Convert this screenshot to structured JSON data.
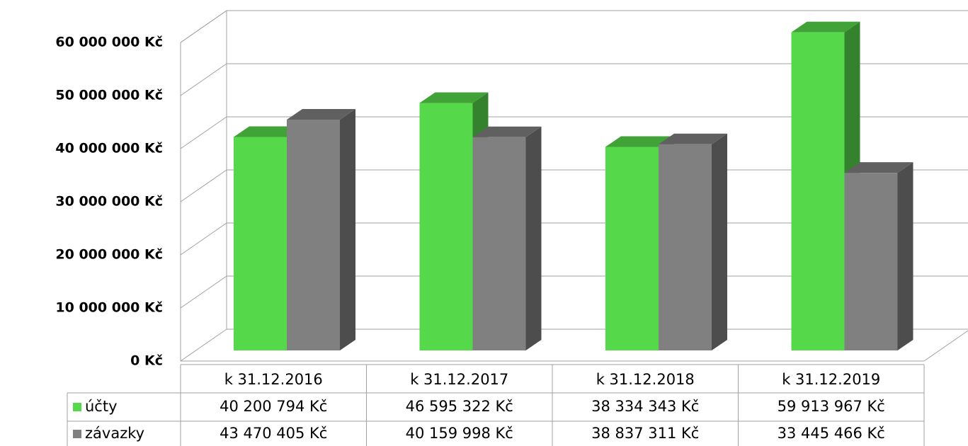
{
  "chart_data": {
    "type": "bar3d",
    "categories": [
      "k 31.12.2016",
      "k 31.12.2017",
      "k 31.12.2018",
      "k 31.12.2019"
    ],
    "series": [
      {
        "name": "účty",
        "color": "#56d84b",
        "values": [
          40200794,
          46595322,
          38334343,
          59913967
        ],
        "value_labels": [
          "40 200 794 Kč",
          "46 595 322 Kč",
          "38 334 343 Kč",
          "59 913 967 Kč"
        ]
      },
      {
        "name": "závazky",
        "color": "#808080",
        "values": [
          43470405,
          40159998,
          38837311,
          33445466
        ],
        "value_labels": [
          "43 470 405 Kč",
          "40 159 998 Kč",
          "38 837 311 Kč",
          "33 445 466 Kč"
        ]
      }
    ],
    "ylim": [
      0,
      60000000
    ],
    "yticks": [
      {
        "value": 0,
        "label": "0 Kč"
      },
      {
        "value": 10000000,
        "label": "10 000 000 Kč"
      },
      {
        "value": 20000000,
        "label": "20 000 000 Kč"
      },
      {
        "value": 30000000,
        "label": "30 000 000 Kč"
      },
      {
        "value": 40000000,
        "label": "40 000 000 Kč"
      },
      {
        "value": 50000000,
        "label": "50 000 000 Kč"
      },
      {
        "value": 60000000,
        "label": "60 000 000 Kč"
      }
    ],
    "grid": true
  }
}
